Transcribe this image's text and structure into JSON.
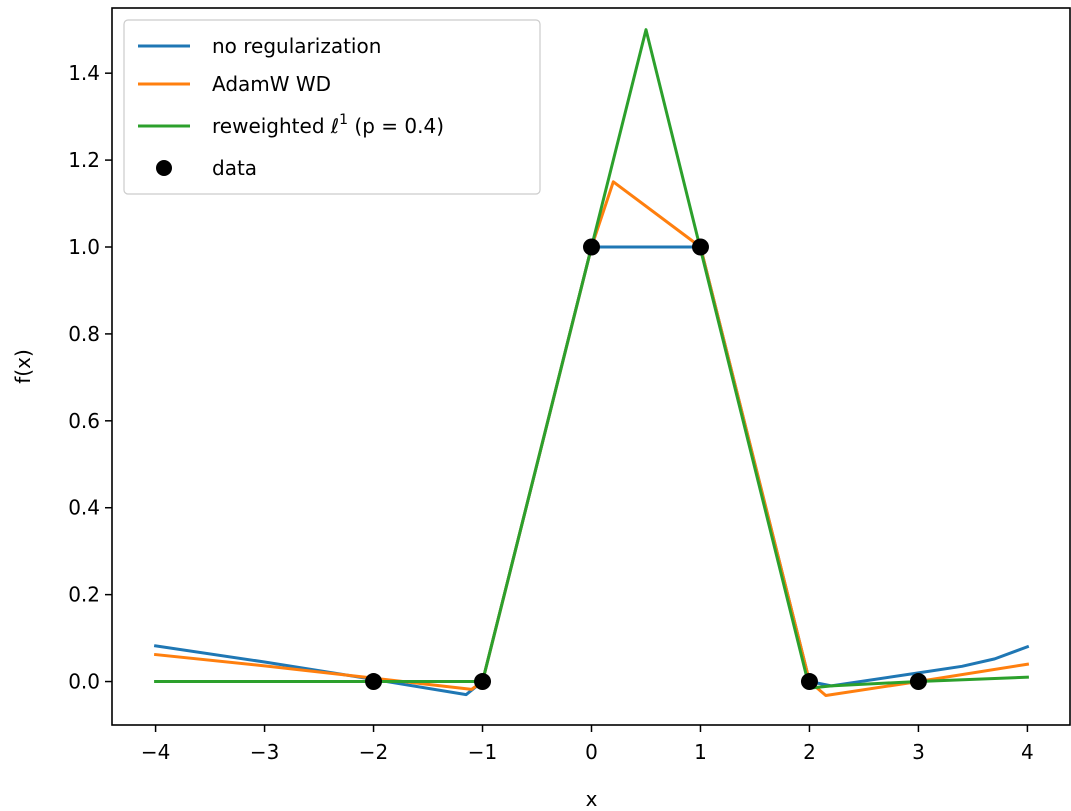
{
  "chart_data": {
    "type": "line",
    "xlabel": "x",
    "ylabel": "f(x)",
    "xlim": [
      -4.4,
      4.4
    ],
    "ylim": [
      -0.1,
      1.55
    ],
    "xticks": [
      -4,
      -3,
      -2,
      -1,
      0,
      1,
      2,
      3,
      4
    ],
    "xtick_labels": [
      "−4",
      "−3",
      "−2",
      "−1",
      "0",
      "1",
      "2",
      "3",
      "4"
    ],
    "yticks": [
      0.0,
      0.2,
      0.4,
      0.6,
      0.8,
      1.0,
      1.2,
      1.4
    ],
    "ytick_labels": [
      "0.0",
      "0.2",
      "0.4",
      "0.6",
      "0.8",
      "1.0",
      "1.2",
      "1.4"
    ],
    "grid": false,
    "legend_position": "top-left",
    "series": [
      {
        "name": "no regularization",
        "color": "#1f77b4",
        "x": [
          -4,
          -3,
          -2,
          -1.15,
          -1,
          0,
          1,
          2,
          2.2,
          3,
          3.4,
          3.7,
          4
        ],
        "y": [
          0.082,
          0.045,
          0.005,
          -0.03,
          0.0,
          1.0,
          1.0,
          0.0,
          -0.01,
          0.02,
          0.035,
          0.052,
          0.08
        ]
      },
      {
        "name": "AdamW WD",
        "color": "#ff7f0e",
        "x": [
          -4,
          -3,
          -2,
          -1.1,
          -1,
          0,
          0.2,
          1,
          2,
          2.15,
          3,
          4
        ],
        "y": [
          0.062,
          0.036,
          0.008,
          -0.018,
          0.0,
          1.0,
          1.15,
          1.0,
          0.0,
          -0.032,
          0.0,
          0.04
        ]
      },
      {
        "name": "reweighted ℓ¹ (p = 0.4)",
        "legend_main": "reweighted ",
        "legend_ell": "ℓ",
        "legend_sup": "1",
        "legend_rest": " (p = 0.4)",
        "color": "#2ca02c",
        "x": [
          -4,
          -3,
          -2,
          -1,
          0.5,
          2,
          2.2,
          3,
          4
        ],
        "y": [
          0.0,
          0.0,
          0.0,
          0.0,
          1.5,
          -0.015,
          -0.01,
          0.0,
          0.01
        ]
      }
    ],
    "scatter": {
      "name": "data",
      "color": "#000000",
      "x": [
        -2,
        -1,
        0,
        1,
        2,
        3
      ],
      "y": [
        0,
        0,
        1,
        1,
        0,
        0
      ]
    }
  }
}
